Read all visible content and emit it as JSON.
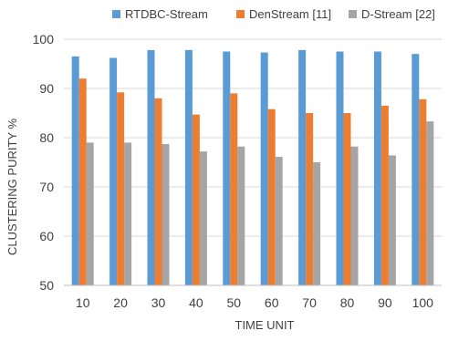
{
  "chart_data": {
    "type": "bar",
    "title": "",
    "xlabel": "TIME UNIT",
    "ylabel": "CLUSTERING PURITY %",
    "categories": [
      "10",
      "20",
      "30",
      "40",
      "50",
      "60",
      "70",
      "80",
      "90",
      "100"
    ],
    "ylim": [
      50,
      100
    ],
    "yticks": [
      "50",
      "60",
      "70",
      "80",
      "90",
      "100"
    ],
    "grid": "horizontal",
    "legend_position": "top",
    "series": [
      {
        "name": "RTDBC-Stream",
        "color": "#5B9BD5",
        "values": [
          96.5,
          96.2,
          97.8,
          97.8,
          97.5,
          97.3,
          97.8,
          97.5,
          97.5,
          97.0
        ]
      },
      {
        "name": "DenStream [11]",
        "color": "#ED7D31",
        "values": [
          92.0,
          89.2,
          88.0,
          84.7,
          89.0,
          85.8,
          85.0,
          85.0,
          86.5,
          87.8
        ]
      },
      {
        "name": "D-Stream [22]",
        "color": "#A5A5A5",
        "values": [
          79.0,
          79.0,
          78.7,
          77.2,
          78.2,
          76.1,
          75.0,
          78.2,
          76.4,
          83.3
        ]
      }
    ]
  }
}
